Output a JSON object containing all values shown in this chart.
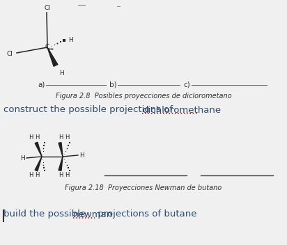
{
  "bg_color": "#f0f0f0",
  "fig_caption1": "Figura 2.8  Posibles proyecciones de diclorometano",
  "fig_caption2": "Figura 2.18  Proyecciones Newman de butano",
  "text_line1_prefix": "construct the possible projections of ",
  "text_line1_underline": "dichloromethane",
  "text_line2_prefix": "build the possible ",
  "text_line2_underline": "newman",
  "text_line2_suffix": " projections of butane",
  "text_color_normal": "#2c4a6e",
  "text_color_red": "#cc0000",
  "text_color_dark": "#222222",
  "font_size_main": 9.5,
  "font_size_caption": 7.0,
  "font_size_label": 7.5,
  "font_size_mol": 6.5
}
